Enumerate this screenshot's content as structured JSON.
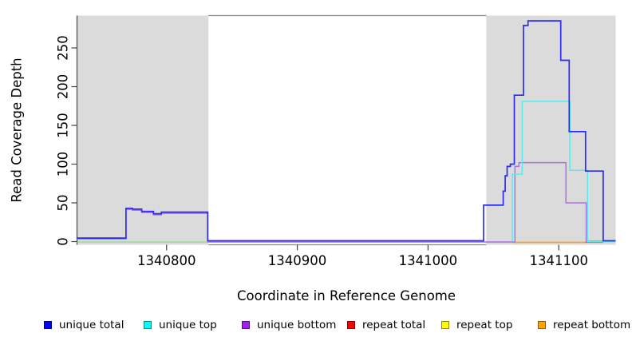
{
  "figure": {
    "x_axis_title": "Coordinate in Reference Genome",
    "y_axis_title": "Read Coverage Depth"
  },
  "legend": {
    "items": [
      {
        "label": "unique total",
        "color": "#0000FF"
      },
      {
        "label": "unique top",
        "color": "#00FFFF"
      },
      {
        "label": "unique bottom",
        "color": "#A020F0"
      },
      {
        "label": "repeat total",
        "color": "#FF0000"
      },
      {
        "label": "repeat top",
        "color": "#FFFF00"
      },
      {
        "label": "repeat bottom",
        "color": "#FFA500"
      }
    ]
  },
  "chart_data": {
    "type": "line",
    "subtype": "step-coverage",
    "title": "",
    "xlabel": "Coordinate in Reference Genome",
    "ylabel": "Read Coverage Depth",
    "xlim": [
      1340731.5,
      1341143.5
    ],
    "ylim": [
      0,
      290
    ],
    "grid": false,
    "legend_position": "bottom",
    "x_ticks": [
      {
        "value": 1340800,
        "label": "1340800"
      },
      {
        "value": 1340900,
        "label": "1340900"
      },
      {
        "value": 1341000,
        "label": "1341000"
      },
      {
        "value": 1341100,
        "label": "1341100"
      }
    ],
    "y_ticks": [
      {
        "value": 0,
        "label": "0"
      },
      {
        "value": 50,
        "label": "50"
      },
      {
        "value": 100,
        "label": "100"
      },
      {
        "value": 150,
        "label": "150"
      },
      {
        "value": 200,
        "label": "200"
      },
      {
        "value": 250,
        "label": "250"
      }
    ],
    "shaded_regions": [
      {
        "x0": 1340731.5,
        "x1": 1340832,
        "fill": "#DBDBDB"
      },
      {
        "x0": 1341044.5,
        "x1": 1341143.5,
        "fill": "#DBDBDB"
      }
    ],
    "series": [
      {
        "name": "zero baseline",
        "color": "#90D890",
        "width": 1.3,
        "points": [
          [
            1340731.5,
            -0.5
          ],
          [
            1341064.5,
            -0.5
          ]
        ]
      },
      {
        "name": "repeat bottom",
        "color": "#FF9F1A",
        "width": 1.6,
        "points": [
          [
            1341064.5,
            -0.9
          ],
          [
            1341120,
            -0.9
          ]
        ]
      },
      {
        "name": "repeat total",
        "color": "#E06060",
        "width": 1.4,
        "points": [
          [
            1341120,
            -0.9
          ],
          [
            1341134,
            -0.9
          ]
        ]
      },
      {
        "name": "unique bottom",
        "color": "#AF6FE6",
        "width": 1.5,
        "points": [
          [
            1340731.5,
            3.5
          ],
          [
            1340769,
            3.5
          ],
          [
            1340769,
            41.5
          ],
          [
            1340774,
            41.5
          ],
          [
            1340774,
            40.5
          ],
          [
            1340781,
            40.5
          ],
          [
            1340781,
            37.5
          ],
          [
            1340790,
            37.5
          ],
          [
            1340790,
            34.5
          ],
          [
            1340796,
            34.5
          ],
          [
            1340796,
            36.5
          ],
          [
            1340831.5,
            36.5
          ],
          [
            1340831.5,
            -0.5
          ],
          [
            1341066.5,
            -0.5
          ],
          [
            1341066.5,
            97
          ],
          [
            1341069.5,
            97
          ],
          [
            1341069.5,
            102
          ],
          [
            1341105.5,
            102
          ],
          [
            1341105.5,
            50
          ],
          [
            1341121,
            50
          ],
          [
            1341121,
            0.5
          ],
          [
            1341143.5,
            0.5
          ]
        ]
      },
      {
        "name": "unique top",
        "color": "#5CE9E9",
        "width": 1.5,
        "points": [
          [
            1341064.5,
            0
          ],
          [
            1341064.5,
            87
          ],
          [
            1341072,
            87
          ],
          [
            1341072,
            181
          ],
          [
            1341108.5,
            181
          ],
          [
            1341108.5,
            92
          ],
          [
            1341122,
            92
          ],
          [
            1341122,
            0
          ],
          [
            1341143.5,
            0
          ]
        ]
      },
      {
        "name": "unique total",
        "color": "#2B2BF5",
        "width": 1.7,
        "points": [
          [
            1340731.5,
            4.5
          ],
          [
            1340769,
            4.5
          ],
          [
            1340769,
            43
          ],
          [
            1340774,
            43
          ],
          [
            1340774,
            42
          ],
          [
            1340781,
            42
          ],
          [
            1340781,
            39
          ],
          [
            1340790,
            39
          ],
          [
            1340790,
            36
          ],
          [
            1340796,
            36
          ],
          [
            1340796,
            38
          ],
          [
            1340831.5,
            38
          ],
          [
            1340831.5,
            1
          ],
          [
            1341042.5,
            1
          ],
          [
            1341042.5,
            47
          ],
          [
            1341057.5,
            47
          ],
          [
            1341057.5,
            65
          ],
          [
            1341059,
            65
          ],
          [
            1341059,
            85
          ],
          [
            1341060.5,
            85
          ],
          [
            1341060.5,
            97
          ],
          [
            1341063,
            97
          ],
          [
            1341063,
            100
          ],
          [
            1341066,
            100
          ],
          [
            1341066,
            189
          ],
          [
            1341073,
            189
          ],
          [
            1341073,
            279
          ],
          [
            1341076.5,
            279
          ],
          [
            1341076.5,
            285
          ],
          [
            1341101.5,
            285
          ],
          [
            1341101.5,
            234
          ],
          [
            1341108,
            234
          ],
          [
            1341108,
            142
          ],
          [
            1341120.5,
            142
          ],
          [
            1341120.5,
            91
          ],
          [
            1341134,
            91
          ],
          [
            1341134,
            1
          ],
          [
            1341143.5,
            1
          ]
        ]
      }
    ]
  }
}
